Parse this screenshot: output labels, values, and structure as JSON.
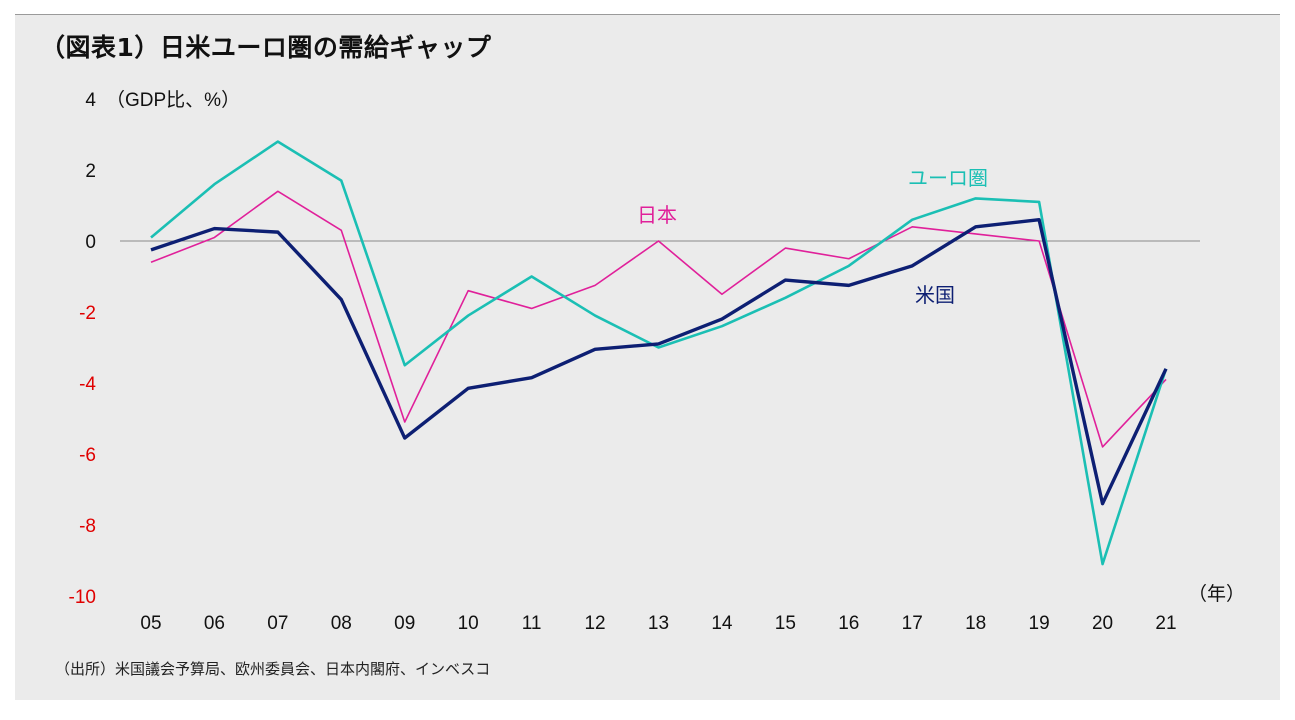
{
  "title": "（図表1）日米ユーロ圏の需給ギャップ",
  "source": "（出所）米国議会予算局、欧州委員会、日本内閣府、インベスコ",
  "chart_data": {
    "type": "line",
    "title": "（図表1）日米ユーロ圏の需給ギャップ",
    "ylabel": "（GDP比、%）",
    "xlabel": "（年）",
    "categories": [
      "05",
      "06",
      "07",
      "08",
      "09",
      "10",
      "11",
      "12",
      "13",
      "14",
      "15",
      "16",
      "17",
      "18",
      "19",
      "20",
      "21"
    ],
    "ylim": [
      -10,
      4
    ],
    "yticks": [
      4,
      2,
      0,
      -2,
      -4,
      -6,
      -8,
      -10
    ],
    "grid": false,
    "series": [
      {
        "name": "日本",
        "color": "#e0209a",
        "width": 1.6,
        "values": [
          -0.6,
          0.1,
          1.4,
          0.3,
          -5.1,
          -1.4,
          -1.9,
          -1.25,
          0.0,
          -1.5,
          -0.2,
          -0.5,
          0.4,
          0.2,
          0.0,
          -5.8,
          -3.9
        ]
      },
      {
        "name": "ユーロ圏",
        "color": "#1bbfb4",
        "width": 2.6,
        "values": [
          0.1,
          1.6,
          2.8,
          1.7,
          -3.5,
          -2.1,
          -1.0,
          -2.1,
          -3.0,
          -2.4,
          -1.6,
          -0.7,
          0.6,
          1.2,
          1.1,
          -9.1,
          -3.6
        ]
      },
      {
        "name": "米国",
        "color": "#0d1f73",
        "width": 3.4,
        "values": [
          -0.25,
          0.35,
          0.25,
          -1.65,
          -5.55,
          -4.15,
          -3.85,
          -3.05,
          -2.9,
          -2.2,
          -1.1,
          -1.25,
          -0.7,
          0.4,
          0.6,
          -7.4,
          -3.6
        ]
      }
    ],
    "colors": {
      "negative_tick": "#e00000",
      "positive_tick": "#111111",
      "zero_line": "#8a8a8a"
    }
  }
}
